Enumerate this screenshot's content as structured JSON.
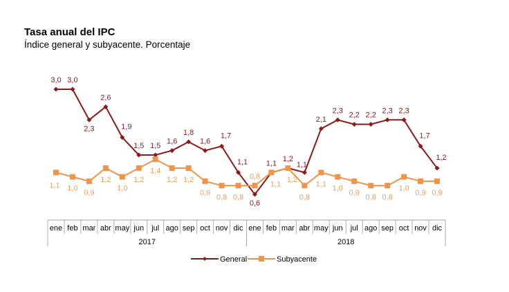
{
  "chart_data": {
    "type": "line",
    "title": "Tasa anual del IPC",
    "subtitle": "Índice general y subyacente. Porcentaje",
    "categories": [
      "ene",
      "feb",
      "mar",
      "abr",
      "may",
      "jun",
      "jul",
      "ago",
      "sep",
      "oct",
      "nov",
      "dic",
      "ene",
      "feb",
      "mar",
      "abr",
      "may",
      "jun",
      "jul",
      "ago",
      "sep",
      "oct",
      "nov",
      "dic"
    ],
    "groups": [
      {
        "label": "2017",
        "start": 0,
        "end": 11
      },
      {
        "label": "2018",
        "start": 12,
        "end": 23
      }
    ],
    "series": [
      {
        "name": "General",
        "color": "#8B1A1A",
        "marker": "diamond",
        "values": [
          3.0,
          3.0,
          2.3,
          2.6,
          1.9,
          1.5,
          1.5,
          1.6,
          1.8,
          1.6,
          1.7,
          1.1,
          0.6,
          1.1,
          1.2,
          1.1,
          2.1,
          2.3,
          2.2,
          2.2,
          2.3,
          2.3,
          1.7,
          1.2
        ],
        "labels": [
          "3,0",
          "3,0",
          "2,3",
          "2,6",
          "1,9",
          "1,5",
          "1,5",
          "1,6",
          "1,8",
          "1,6",
          "1,7",
          "1,1",
          "0,6",
          "1,1",
          "1,2",
          "1,1",
          "2,1",
          "2,3",
          "2,2",
          "2,2",
          "2,3",
          "2,3",
          "1,7",
          "1,2"
        ]
      },
      {
        "name": "Subyacente",
        "color": "#F0944A",
        "marker": "square",
        "values": [
          1.1,
          1.0,
          0.9,
          1.2,
          1.0,
          1.2,
          1.4,
          1.2,
          1.2,
          0.9,
          0.8,
          0.8,
          0.8,
          1.1,
          1.2,
          0.8,
          1.1,
          1.0,
          0.9,
          0.8,
          0.8,
          1.0,
          0.9,
          0.9
        ],
        "labels": [
          "1,1",
          "1,0",
          "0,9",
          "1,2",
          "1,0",
          "1,2",
          "1,4",
          "1,2",
          "1,2",
          "0,9",
          "0,8",
          "0,8",
          "0,8",
          "1,1",
          "1,2",
          "0,8",
          "1,1",
          "1,0",
          "0,9",
          "0,8",
          "0,8",
          "1,0",
          "0,9",
          "0,9"
        ]
      }
    ],
    "xlabel": "",
    "ylabel": "",
    "ylim": [
      0.6,
      3.0
    ],
    "grid": false,
    "legend": "bottom-center"
  }
}
